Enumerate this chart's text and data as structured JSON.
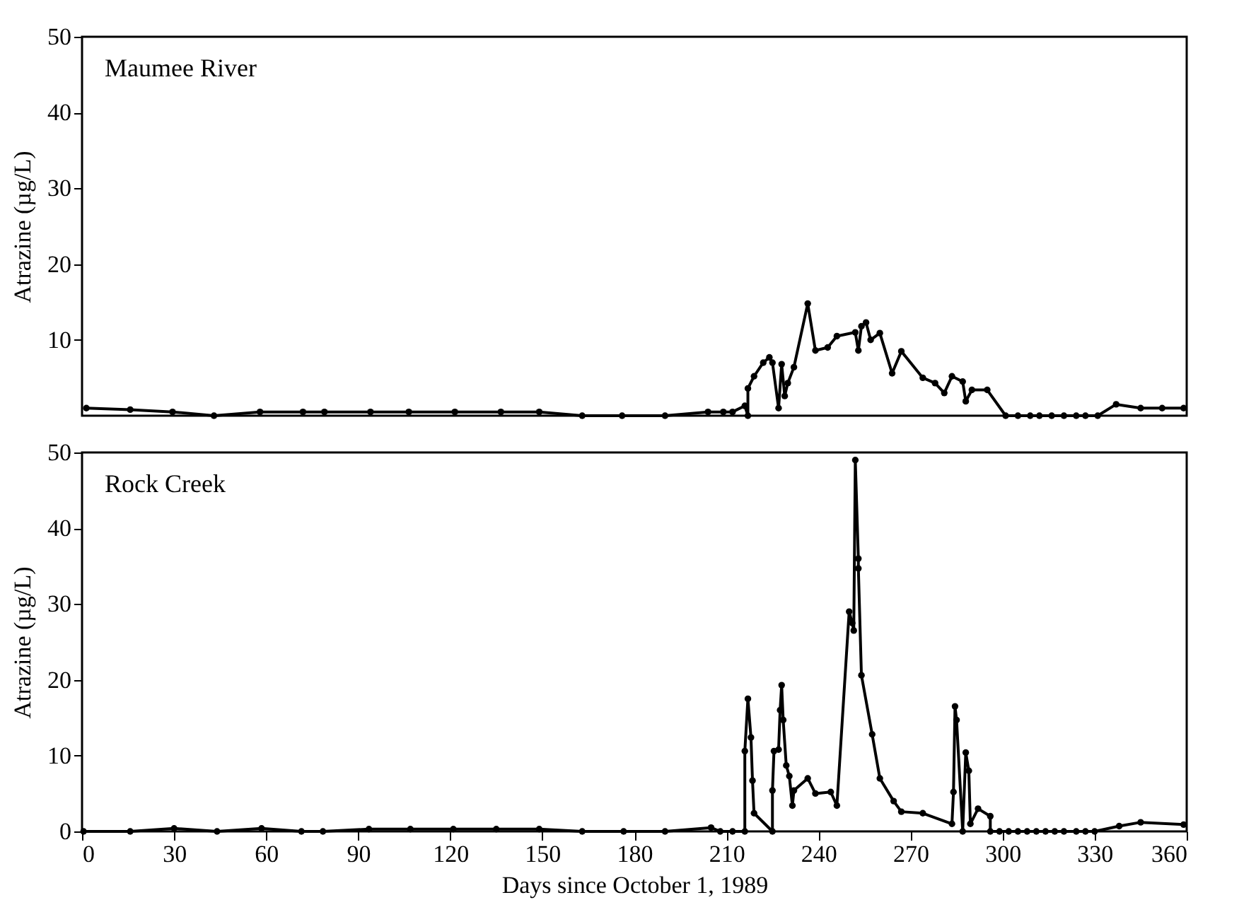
{
  "chart_data": [
    {
      "type": "line",
      "title": "Maumee River",
      "ylabel": "Atrazine (µg/L)",
      "xlim": [
        0,
        360
      ],
      "xticks": [
        0,
        30,
        60,
        90,
        120,
        150,
        180,
        210,
        240,
        270,
        300,
        330,
        360
      ],
      "ylim": [
        0,
        50
      ],
      "yticks": [
        10,
        20,
        30,
        40,
        50
      ],
      "tick_labels": "y",
      "marker": "circle",
      "line_style": "solid",
      "x": [
        1.4,
        15.7,
        29.5,
        43,
        58,
        72,
        79,
        94,
        106.5,
        121.5,
        136.5,
        149,
        163,
        176,
        190,
        204,
        209,
        212,
        216,
        217,
        217,
        219,
        222,
        224,
        225,
        227,
        228,
        229,
        230,
        232,
        236.5,
        239,
        243,
        246,
        252,
        253,
        254,
        255.5,
        257,
        260,
        264,
        267,
        274,
        278,
        281,
        283.5,
        287,
        288,
        290,
        295,
        301,
        305,
        309,
        312,
        316,
        320,
        324,
        327,
        331,
        337,
        345,
        352,
        359
      ],
      "series": [
        {
          "color": "#000000",
          "values": [
            1,
            0.8,
            0.5,
            0,
            0.5,
            0.5,
            0.5,
            0.5,
            0.5,
            0.5,
            0.5,
            0.5,
            0,
            0,
            0,
            0.5,
            0.5,
            0.5,
            1.3,
            0,
            3.6,
            5.2,
            7,
            7.7,
            7,
            1,
            6.8,
            2.6,
            4.3,
            6.4,
            14.8,
            8.6,
            9,
            10.5,
            11,
            8.6,
            11.8,
            12.3,
            10,
            10.9,
            5.6,
            8.5,
            5,
            4.3,
            3,
            5.2,
            4.5,
            1.9,
            3.4,
            3.4,
            0,
            0,
            0,
            0,
            0,
            0,
            0,
            0,
            0,
            1.5,
            1,
            1,
            1
          ]
        }
      ]
    },
    {
      "type": "line",
      "title": "Rock Creek",
      "xlabel": "Days since October 1, 1989",
      "ylabel": "Atrazine (µg/L)",
      "xlim": [
        0,
        360
      ],
      "xticks": [
        0,
        30,
        60,
        90,
        120,
        150,
        180,
        210,
        240,
        270,
        300,
        330,
        360
      ],
      "ylim": [
        0,
        50
      ],
      "yticks": [
        0,
        10,
        20,
        30,
        40,
        50
      ],
      "marker": "circle",
      "line_style": "solid",
      "x": [
        0.5,
        15.7,
        30,
        44,
        58.5,
        71.5,
        78.5,
        93.5,
        107,
        121,
        135,
        149,
        163,
        176.5,
        190,
        205,
        208,
        212,
        216,
        216,
        217,
        218,
        218.5,
        219,
        225,
        225,
        225.5,
        227,
        227.5,
        228,
        228.5,
        229.5,
        230.5,
        231.5,
        232,
        236.5,
        239,
        244,
        246,
        250,
        251,
        251.5,
        252,
        253,
        253,
        254,
        257.5,
        260,
        264.5,
        267,
        274,
        283.5,
        284,
        284.5,
        285,
        287,
        288,
        289,
        289.5,
        292,
        296,
        296,
        299,
        302,
        305,
        308,
        311,
        314,
        317,
        320,
        324,
        327,
        330,
        338,
        345,
        359
      ],
      "series": [
        {
          "color": "#000000",
          "values": [
            0,
            0,
            0.4,
            0,
            0.4,
            0,
            0,
            0.3,
            0.3,
            0.3,
            0.3,
            0.3,
            0,
            0,
            0,
            0.5,
            0,
            0,
            0,
            10.6,
            17.5,
            12.4,
            6.7,
            2.4,
            0,
            5.4,
            10.6,
            10.8,
            16,
            19.3,
            14.7,
            8.7,
            7.3,
            3.4,
            5.4,
            7,
            5,
            5.2,
            3.4,
            29,
            27.5,
            26.5,
            49,
            36,
            34.7,
            20.6,
            12.8,
            7,
            4,
            2.6,
            2.4,
            1,
            5.2,
            16.5,
            14.7,
            0,
            10.4,
            8,
            1,
            3,
            2,
            0,
            0,
            0,
            0,
            0,
            0,
            0,
            0,
            0,
            0,
            0,
            0,
            0.7,
            1.2,
            0.9
          ]
        }
      ]
    }
  ]
}
